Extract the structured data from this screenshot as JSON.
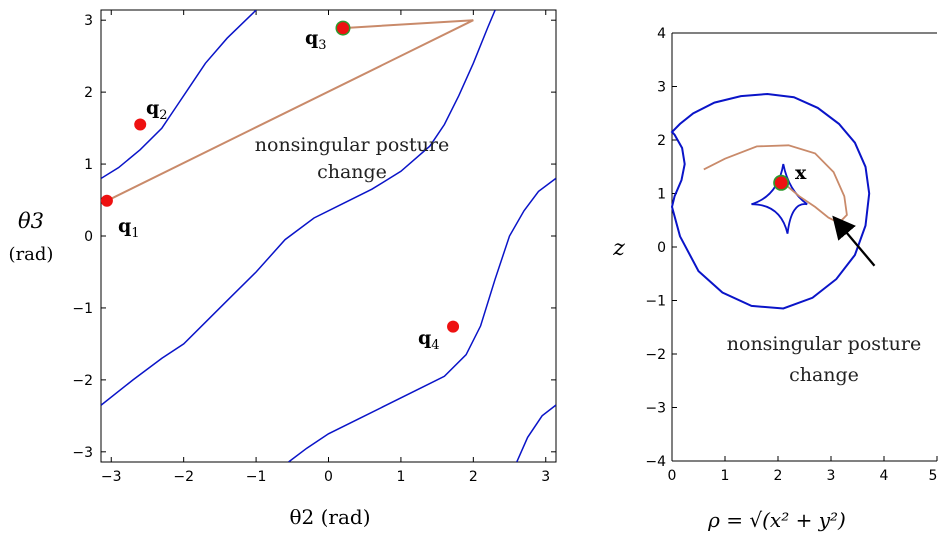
{
  "chart_data": [
    {
      "type": "line",
      "xlabel": "θ2 (rad)",
      "ylabel": "θ3",
      "ylabel_unit": "(rad)",
      "xlim": [
        -3.1416,
        3.1416
      ],
      "ylim": [
        -3.1416,
        3.1416
      ],
      "xticks": [
        -3,
        -2,
        -1,
        0,
        1,
        2,
        3
      ],
      "yticks": [
        -3,
        -2,
        -1,
        0,
        1,
        2,
        3
      ],
      "xtick_labels": [
        "−3",
        "−2",
        "−1",
        "0",
        "1",
        "2",
        "3"
      ],
      "ytick_labels": [
        "−3",
        "−2",
        "−1",
        "0",
        "1",
        "2",
        "3"
      ],
      "grid": false,
      "colors": {
        "singular": "#0a14c8",
        "path": "#c98a6a",
        "point": "#ee1111",
        "ring": "#2e9a2e"
      },
      "singular_curves": [
        [
          [
            -3.14,
            0.8
          ],
          [
            -2.9,
            0.95
          ],
          [
            -2.6,
            1.2
          ],
          [
            -2.3,
            1.5
          ],
          [
            -2.1,
            1.8
          ],
          [
            -1.9,
            2.1
          ],
          [
            -1.7,
            2.4
          ],
          [
            -1.4,
            2.75
          ],
          [
            -1.0,
            3.14
          ]
        ],
        [
          [
            -3.14,
            -2.35
          ],
          [
            -2.7,
            -2.0
          ],
          [
            -2.3,
            -1.7
          ],
          [
            -2.0,
            -1.5
          ],
          [
            -1.7,
            -1.2
          ],
          [
            -1.4,
            -0.9
          ],
          [
            -1.0,
            -0.5
          ],
          [
            -0.6,
            -0.05
          ],
          [
            -0.2,
            0.25
          ],
          [
            0.2,
            0.45
          ],
          [
            0.6,
            0.65
          ],
          [
            1.0,
            0.9
          ],
          [
            1.4,
            1.25
          ],
          [
            1.6,
            1.55
          ],
          [
            1.8,
            1.95
          ],
          [
            2.0,
            2.4
          ],
          [
            2.2,
            2.9
          ],
          [
            2.3,
            3.14
          ]
        ],
        [
          [
            -0.55,
            -3.14
          ],
          [
            -0.3,
            -2.95
          ],
          [
            0.0,
            -2.75
          ],
          [
            0.4,
            -2.55
          ],
          [
            0.8,
            -2.35
          ],
          [
            1.2,
            -2.15
          ],
          [
            1.6,
            -1.95
          ],
          [
            1.9,
            -1.65
          ],
          [
            2.1,
            -1.25
          ],
          [
            2.3,
            -0.6
          ],
          [
            2.5,
            0.0
          ],
          [
            2.7,
            0.35
          ],
          [
            2.9,
            0.62
          ],
          [
            3.14,
            0.8
          ]
        ],
        [
          [
            2.6,
            -3.14
          ],
          [
            2.75,
            -2.8
          ],
          [
            2.95,
            -2.5
          ],
          [
            3.14,
            -2.35
          ]
        ]
      ],
      "path": [
        [
          -3.06,
          0.49
        ],
        [
          2.0,
          3.0
        ],
        [
          0.2,
          2.89
        ]
      ],
      "points": [
        {
          "name": "q1",
          "x": -3.06,
          "y": 0.49,
          "ring": false,
          "label_text": "q",
          "label_sub": "1"
        },
        {
          "name": "q2",
          "x": -2.6,
          "y": 1.55,
          "ring": false,
          "label_text": "q",
          "label_sub": "2"
        },
        {
          "name": "q3",
          "x": 0.2,
          "y": 2.89,
          "ring": true,
          "label_text": "q",
          "label_sub": "3"
        },
        {
          "name": "q4",
          "x": 1.72,
          "y": -1.26,
          "ring": false,
          "label_text": "q",
          "label_sub": "4"
        }
      ],
      "annotation": [
        "nonsingular posture",
        "change"
      ]
    },
    {
      "type": "line",
      "xlabel": "ρ = √(x² + y²)",
      "ylabel": "z",
      "xlim": [
        0,
        5
      ],
      "ylim": [
        -4,
        4
      ],
      "xticks": [
        0,
        1,
        2,
        3,
        4,
        5
      ],
      "yticks": [
        -4,
        -3,
        -2,
        -1,
        0,
        1,
        2,
        3,
        4
      ],
      "xtick_labels": [
        "0",
        "1",
        "2",
        "3",
        "4",
        "5"
      ],
      "ytick_labels": [
        "−4",
        "−3",
        "−2",
        "−1",
        "0",
        "1",
        "2",
        "3",
        "4"
      ],
      "grid": false,
      "outer_boundary": [
        [
          0.0,
          0.75
        ],
        [
          0.05,
          0.95
        ],
        [
          0.18,
          1.25
        ],
        [
          0.24,
          1.55
        ],
        [
          0.19,
          1.85
        ],
        [
          0.05,
          2.1
        ],
        [
          0.0,
          2.15
        ],
        [
          0.15,
          2.3
        ],
        [
          0.4,
          2.5
        ],
        [
          0.8,
          2.7
        ],
        [
          1.3,
          2.82
        ],
        [
          1.8,
          2.86
        ],
        [
          2.3,
          2.8
        ],
        [
          2.75,
          2.6
        ],
        [
          3.15,
          2.3
        ],
        [
          3.45,
          1.95
        ],
        [
          3.65,
          1.5
        ],
        [
          3.72,
          1.0
        ],
        [
          3.65,
          0.4
        ],
        [
          3.45,
          -0.15
        ],
        [
          3.1,
          -0.6
        ],
        [
          2.65,
          -0.95
        ],
        [
          2.1,
          -1.15
        ],
        [
          1.5,
          -1.1
        ],
        [
          0.95,
          -0.85
        ],
        [
          0.5,
          -0.45
        ],
        [
          0.15,
          0.2
        ],
        [
          0.0,
          0.75
        ]
      ],
      "cusp_curve": [
        [
          1.8,
          0.75
        ],
        [
          1.98,
          0.88
        ],
        [
          2.1,
          1.0
        ],
        [
          2.22,
          0.8
        ],
        [
          2.4,
          0.65
        ],
        [
          2.25,
          0.5
        ],
        [
          2.12,
          0.35
        ],
        [
          2.06,
          0.6
        ],
        [
          1.8,
          0.75
        ]
      ],
      "cusp_curve_top": [
        [
          2.1,
          1.0
        ],
        [
          1.92,
          1.2
        ],
        [
          1.7,
          1.45
        ],
        [
          1.98,
          1.55
        ],
        [
          2.35,
          1.65
        ],
        [
          2.35,
          1.35
        ],
        [
          2.4,
          1.05
        ],
        [
          2.3,
          0.85
        ],
        [
          2.4,
          0.65
        ]
      ],
      "path": [
        [
          0.6,
          1.45
        ],
        [
          1.0,
          1.65
        ],
        [
          1.6,
          1.88
        ],
        [
          2.2,
          1.9
        ],
        [
          2.7,
          1.75
        ],
        [
          3.05,
          1.4
        ],
        [
          3.25,
          0.95
        ],
        [
          3.3,
          0.6
        ],
        [
          3.15,
          0.45
        ],
        [
          2.95,
          0.55
        ],
        [
          2.7,
          0.75
        ],
        [
          2.4,
          0.95
        ],
        [
          2.1,
          1.2
        ]
      ],
      "points": [
        {
          "name": "x",
          "x": 2.06,
          "y": 1.2,
          "ring": true,
          "label_text": "x",
          "label_sub": ""
        }
      ],
      "arrow_from": [
        3.82,
        -0.35
      ],
      "arrow_to": [
        3.08,
        0.52
      ],
      "annotation": [
        "nonsingular posture",
        "change"
      ]
    }
  ]
}
